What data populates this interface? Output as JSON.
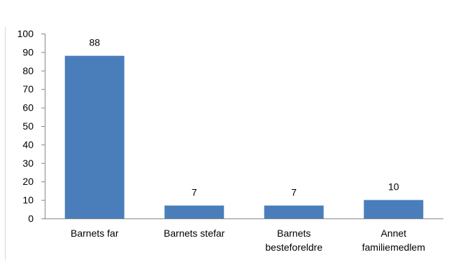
{
  "chart_data": {
    "type": "bar",
    "categories": [
      [
        "Barnets far"
      ],
      [
        "Barnets stefar"
      ],
      [
        "Barnets",
        "besteforeldre"
      ],
      [
        "Annet",
        "familiemedlem"
      ]
    ],
    "values": [
      88,
      7,
      7,
      10
    ],
    "data_labels": [
      "88",
      "7",
      "7",
      "10"
    ],
    "y_ticks": [
      "0",
      "10",
      "20",
      "30",
      "40",
      "50",
      "60",
      "70",
      "80",
      "90",
      "100"
    ],
    "ylim": [
      0,
      100
    ],
    "title": "",
    "xlabel": "",
    "ylabel": "",
    "grid": false,
    "legend": "none",
    "bar_color": "#4a7ebb",
    "axis_color": "#868686"
  }
}
